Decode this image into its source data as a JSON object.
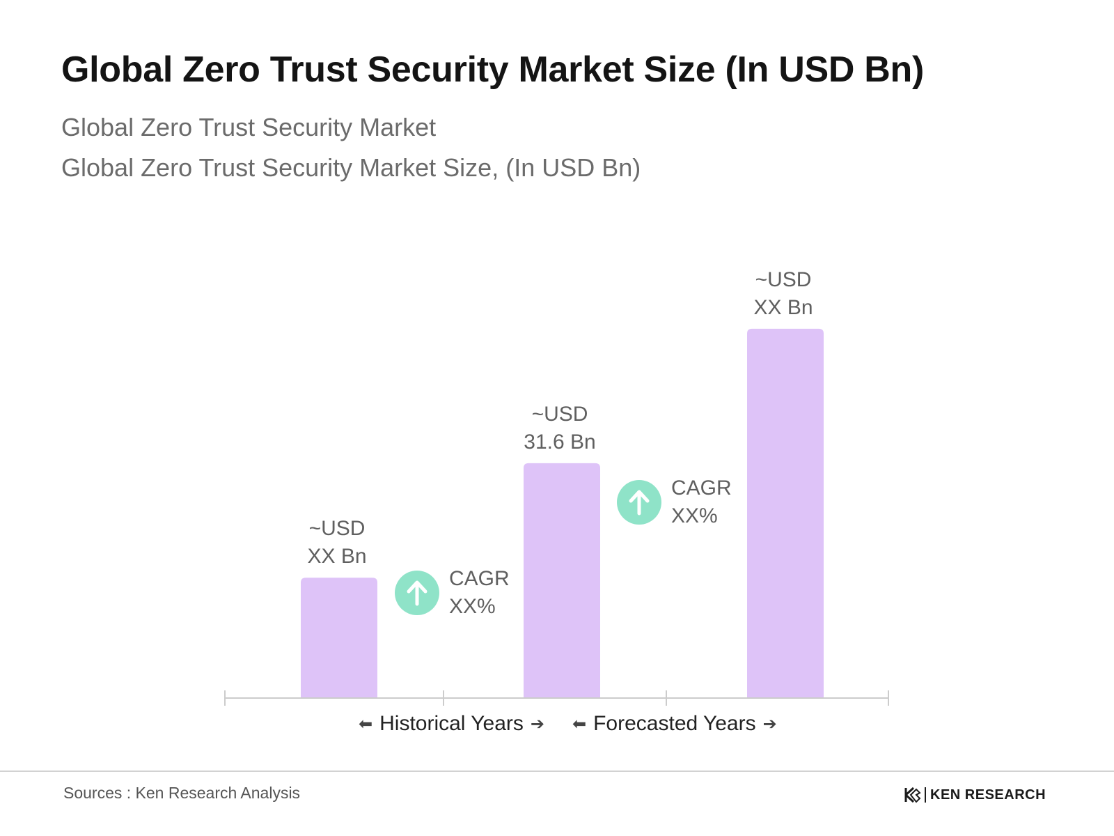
{
  "chart_data": {
    "type": "bar",
    "title": "Global Zero Trust Security Market Size (In USD Bn)",
    "subtitle_line1": "Global Zero Trust Security Market",
    "subtitle_line2": "Global Zero Trust Security Market Size, (In USD Bn)",
    "bars": [
      {
        "value": 16.2,
        "label_line1": "~USD",
        "label_line2": "XX Bn"
      },
      {
        "value": 31.6,
        "label_line1": "~USD",
        "label_line2": "31.6 Bn"
      },
      {
        "value": 49.7,
        "label_line1": "~USD",
        "label_line2": "XX Bn"
      }
    ],
    "ylim": [
      0,
      60
    ],
    "grid": false,
    "legend": "none",
    "bar_color": "#dec3f8",
    "cagr": [
      {
        "line1": "CAGR",
        "line2": "XX%"
      },
      {
        "line1": "CAGR",
        "line2": "XX%"
      }
    ],
    "periods": [
      "Historical Years",
      "Forecasted Years"
    ],
    "cagr_color": "#8fe3c8"
  },
  "footer": {
    "source": "Sources : Ken Research Analysis",
    "logo_text": "KEN RESEARCH"
  }
}
